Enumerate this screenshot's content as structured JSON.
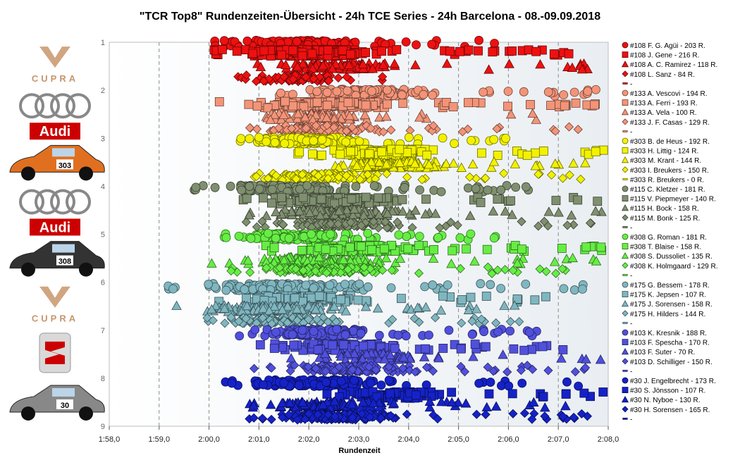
{
  "chart_data": {
    "type": "scatter",
    "title": "\"TCR Top8\" Rundenzeiten-Übersicht  - 24h TCE Series  - 24h Barcelona  - 08.-09.09.2018",
    "xlabel": "Rundenzeit",
    "ylabel": "",
    "x_ticks": [
      "1:58,0",
      "1:59,0",
      "2:00,0",
      "2:01,0",
      "2:02,0",
      "2:03,0",
      "2:04,0",
      "2:05,0",
      "2:06,0",
      "2:07,0",
      "2:08,0"
    ],
    "xlim": [
      118,
      128
    ],
    "y_ticks": [
      "1",
      "2",
      "3",
      "4",
      "5",
      "6",
      "7",
      "8",
      "9"
    ],
    "ylim": [
      1,
      9
    ],
    "grid": "vertical dashed",
    "legend_position": "right",
    "logos": [
      {
        "brand": "CUPRA",
        "color": "#c8956b"
      },
      {
        "brand": "Audi",
        "color": "#cc0000"
      },
      {
        "brand": "303",
        "color": "#e07020"
      },
      {
        "brand": "Audi",
        "color": "#cc0000"
      },
      {
        "brand": "308",
        "color": "#333333"
      },
      {
        "brand": "CUPRA",
        "color": "#c8956b"
      },
      {
        "brand": "SEAT",
        "color": "#cc0000"
      },
      {
        "brand": "30",
        "color": "#888888"
      }
    ],
    "groups": [
      {
        "color": "#ee1111",
        "entries": [
          {
            "label": "#108 F. G. Agüi - 203 R.",
            "marker": "circle",
            "laps": 203,
            "x_range": [
              120.1,
              126.0
            ],
            "y_offset": 0.03
          },
          {
            "label": "#108 J. Gene - 216 R.",
            "marker": "square",
            "laps": 216,
            "x_range": [
              120.0,
              127.3
            ],
            "y_offset": 0.22
          },
          {
            "label": "#108 A. C. Ramirez - 118 R.",
            "marker": "triangle",
            "laps": 118,
            "x_range": [
              120.7,
              127.6
            ],
            "y_offset": 0.5
          },
          {
            "label": "#108 L. Sanz - 84 R.",
            "marker": "diamond",
            "laps": 84,
            "x_range": [
              120.5,
              124.9
            ],
            "y_offset": 0.75
          },
          {
            "label": "-",
            "marker": "dash",
            "laps": 0,
            "x_range": null,
            "y_offset": 0.95
          }
        ]
      },
      {
        "color": "#f39478",
        "entries": [
          {
            "label": "#133 A. Vescovi - 194 R.",
            "marker": "circle",
            "laps": 194,
            "x_range": [
              121.3,
              127.9
            ],
            "y_offset": 0.05
          },
          {
            "label": "#133 A. Ferri - 193 R.",
            "marker": "square",
            "laps": 193,
            "x_range": [
              120.2,
              127.9
            ],
            "y_offset": 0.3
          },
          {
            "label": "#133 A. Vela - 100 R.",
            "marker": "triangle",
            "laps": 100,
            "x_range": [
              120.4,
              126.6
            ],
            "y_offset": 0.55
          },
          {
            "label": "#133 J. F. Casas - 129 R.",
            "marker": "diamond",
            "laps": 129,
            "x_range": [
              120.2,
              127.4
            ],
            "y_offset": 0.8
          },
          {
            "label": "-",
            "marker": "dash",
            "laps": 0,
            "x_range": null,
            "y_offset": 0.95
          }
        ]
      },
      {
        "color": "#f2f200",
        "entries": [
          {
            "label": "#303 B. de Heus - 192 R.",
            "marker": "circle",
            "laps": 192,
            "x_range": [
              120.4,
              126.2
            ],
            "y_offset": 0.05
          },
          {
            "label": "#303 H. Littig - 124 R.",
            "marker": "square",
            "laps": 124,
            "x_range": [
              121.6,
              128.0
            ],
            "y_offset": 0.3
          },
          {
            "label": "#303 M. Krant - 144 R.",
            "marker": "triangle",
            "laps": 144,
            "x_range": [
              122.0,
              127.7
            ],
            "y_offset": 0.55
          },
          {
            "label": "#303 I. Breukers - 150 R.",
            "marker": "diamond",
            "laps": 150,
            "x_range": [
              120.0,
              127.9
            ],
            "y_offset": 0.8
          },
          {
            "label": "#303 R. Breukers - 0 R.",
            "marker": "dash",
            "laps": 0,
            "x_range": null,
            "y_offset": 0.95
          }
        ]
      },
      {
        "color": "#7f8f6f",
        "entries": [
          {
            "label": "#115 C. Kletzer - 181 R.",
            "marker": "circle",
            "laps": 181,
            "x_range": [
              119.7,
              126.5
            ],
            "y_offset": 0.05
          },
          {
            "label": "#115 V. Piepmeyer - 140 R.",
            "marker": "square",
            "laps": 140,
            "x_range": [
              120.6,
              128.0
            ],
            "y_offset": 0.3
          },
          {
            "label": "#115 H. Bock - 158 R.",
            "marker": "triangle",
            "laps": 158,
            "x_range": [
              120.5,
              127.9
            ],
            "y_offset": 0.55
          },
          {
            "label": "#115 M. Bonk - 125 R.",
            "marker": "diamond",
            "laps": 125,
            "x_range": [
              120.5,
              127.9
            ],
            "y_offset": 0.8
          },
          {
            "label": "-",
            "marker": "dash",
            "laps": 0,
            "x_range": null,
            "y_offset": 0.95
          }
        ]
      },
      {
        "color": "#66ee44",
        "entries": [
          {
            "label": "#308 G. Roman - 181 R.",
            "marker": "circle",
            "laps": 181,
            "x_range": [
              120.2,
              125.8
            ],
            "y_offset": 0.05
          },
          {
            "label": "#308 T. Blaise - 158 R.",
            "marker": "square",
            "laps": 158,
            "x_range": [
              121.0,
              127.9
            ],
            "y_offset": 0.3
          },
          {
            "label": "#308 S. Dussoliet - 135 R.",
            "marker": "triangle",
            "laps": 135,
            "x_range": [
              119.9,
              127.9
            ],
            "y_offset": 0.55
          },
          {
            "label": "#308 K. Holmgaard - 129 R.",
            "marker": "diamond",
            "laps": 129,
            "x_range": [
              120.1,
              127.9
            ],
            "y_offset": 0.75
          },
          {
            "label": "-",
            "marker": "dash",
            "laps": 0,
            "x_range": null,
            "y_offset": 0.95
          }
        ]
      },
      {
        "color": "#7fb6c0",
        "entries": [
          {
            "label": "#175 G. Bessem - 178 R.",
            "marker": "circle",
            "laps": 178,
            "x_range": [
              119.1,
              127.5
            ],
            "y_offset": 0.1
          },
          {
            "label": "#175 K. Jepsen - 107 R.",
            "marker": "square",
            "laps": 107,
            "x_range": [
              119.9,
              127.0
            ],
            "y_offset": 0.35
          },
          {
            "label": "#175 J. Sorensen - 158 R.",
            "marker": "triangle",
            "laps": 158,
            "x_range": [
              119.2,
              126.5
            ],
            "y_offset": 0.55
          },
          {
            "label": "#175 H. Hilders - 144 R.",
            "marker": "diamond",
            "laps": 144,
            "x_range": [
              119.5,
              126.3
            ],
            "y_offset": 0.8
          },
          {
            "label": "-",
            "marker": "dash",
            "laps": 0,
            "x_range": null,
            "y_offset": 0.95
          }
        ]
      },
      {
        "color": "#5050dd",
        "entries": [
          {
            "label": "#103 K. Kresnik - 188 R.",
            "marker": "circle",
            "laps": 188,
            "x_range": [
              120.5,
              126.8
            ],
            "y_offset": 0.05
          },
          {
            "label": "#103 F. Spescha - 170 R.",
            "marker": "square",
            "laps": 170,
            "x_range": [
              121.0,
              127.1
            ],
            "y_offset": 0.35
          },
          {
            "label": "#103 F. Suter - 70 R.",
            "marker": "triangle",
            "laps": 70,
            "x_range": [
              121.6,
              127.9
            ],
            "y_offset": 0.55
          },
          {
            "label": "#103 D. Schilliger - 150 R.",
            "marker": "diamond",
            "laps": 150,
            "x_range": [
              120.8,
              128.0
            ],
            "y_offset": 0.8
          },
          {
            "label": "-",
            "marker": "dash",
            "laps": 0,
            "x_range": null,
            "y_offset": 0.95
          }
        ]
      },
      {
        "color": "#1522c8",
        "entries": [
          {
            "label": "#30 J. Engelbrecht - 173 R.",
            "marker": "circle",
            "laps": 173,
            "x_range": [
              120.2,
              127.7
            ],
            "y_offset": 0.1
          },
          {
            "label": "#30 S. Jönsson - 107 R.",
            "marker": "square",
            "laps": 107,
            "x_range": [
              122.0,
              127.9
            ],
            "y_offset": 0.35
          },
          {
            "label": "#30 N. Nyboe - 130 R.",
            "marker": "triangle",
            "laps": 130,
            "x_range": [
              120.5,
              127.6
            ],
            "y_offset": 0.55
          },
          {
            "label": "#30 H. Sorensen - 165 R.",
            "marker": "diamond",
            "laps": 165,
            "x_range": [
              120.5,
              127.9
            ],
            "y_offset": 0.8
          },
          {
            "label": "-",
            "marker": "dash",
            "laps": 0,
            "x_range": null,
            "y_offset": 0.95
          }
        ]
      }
    ]
  }
}
